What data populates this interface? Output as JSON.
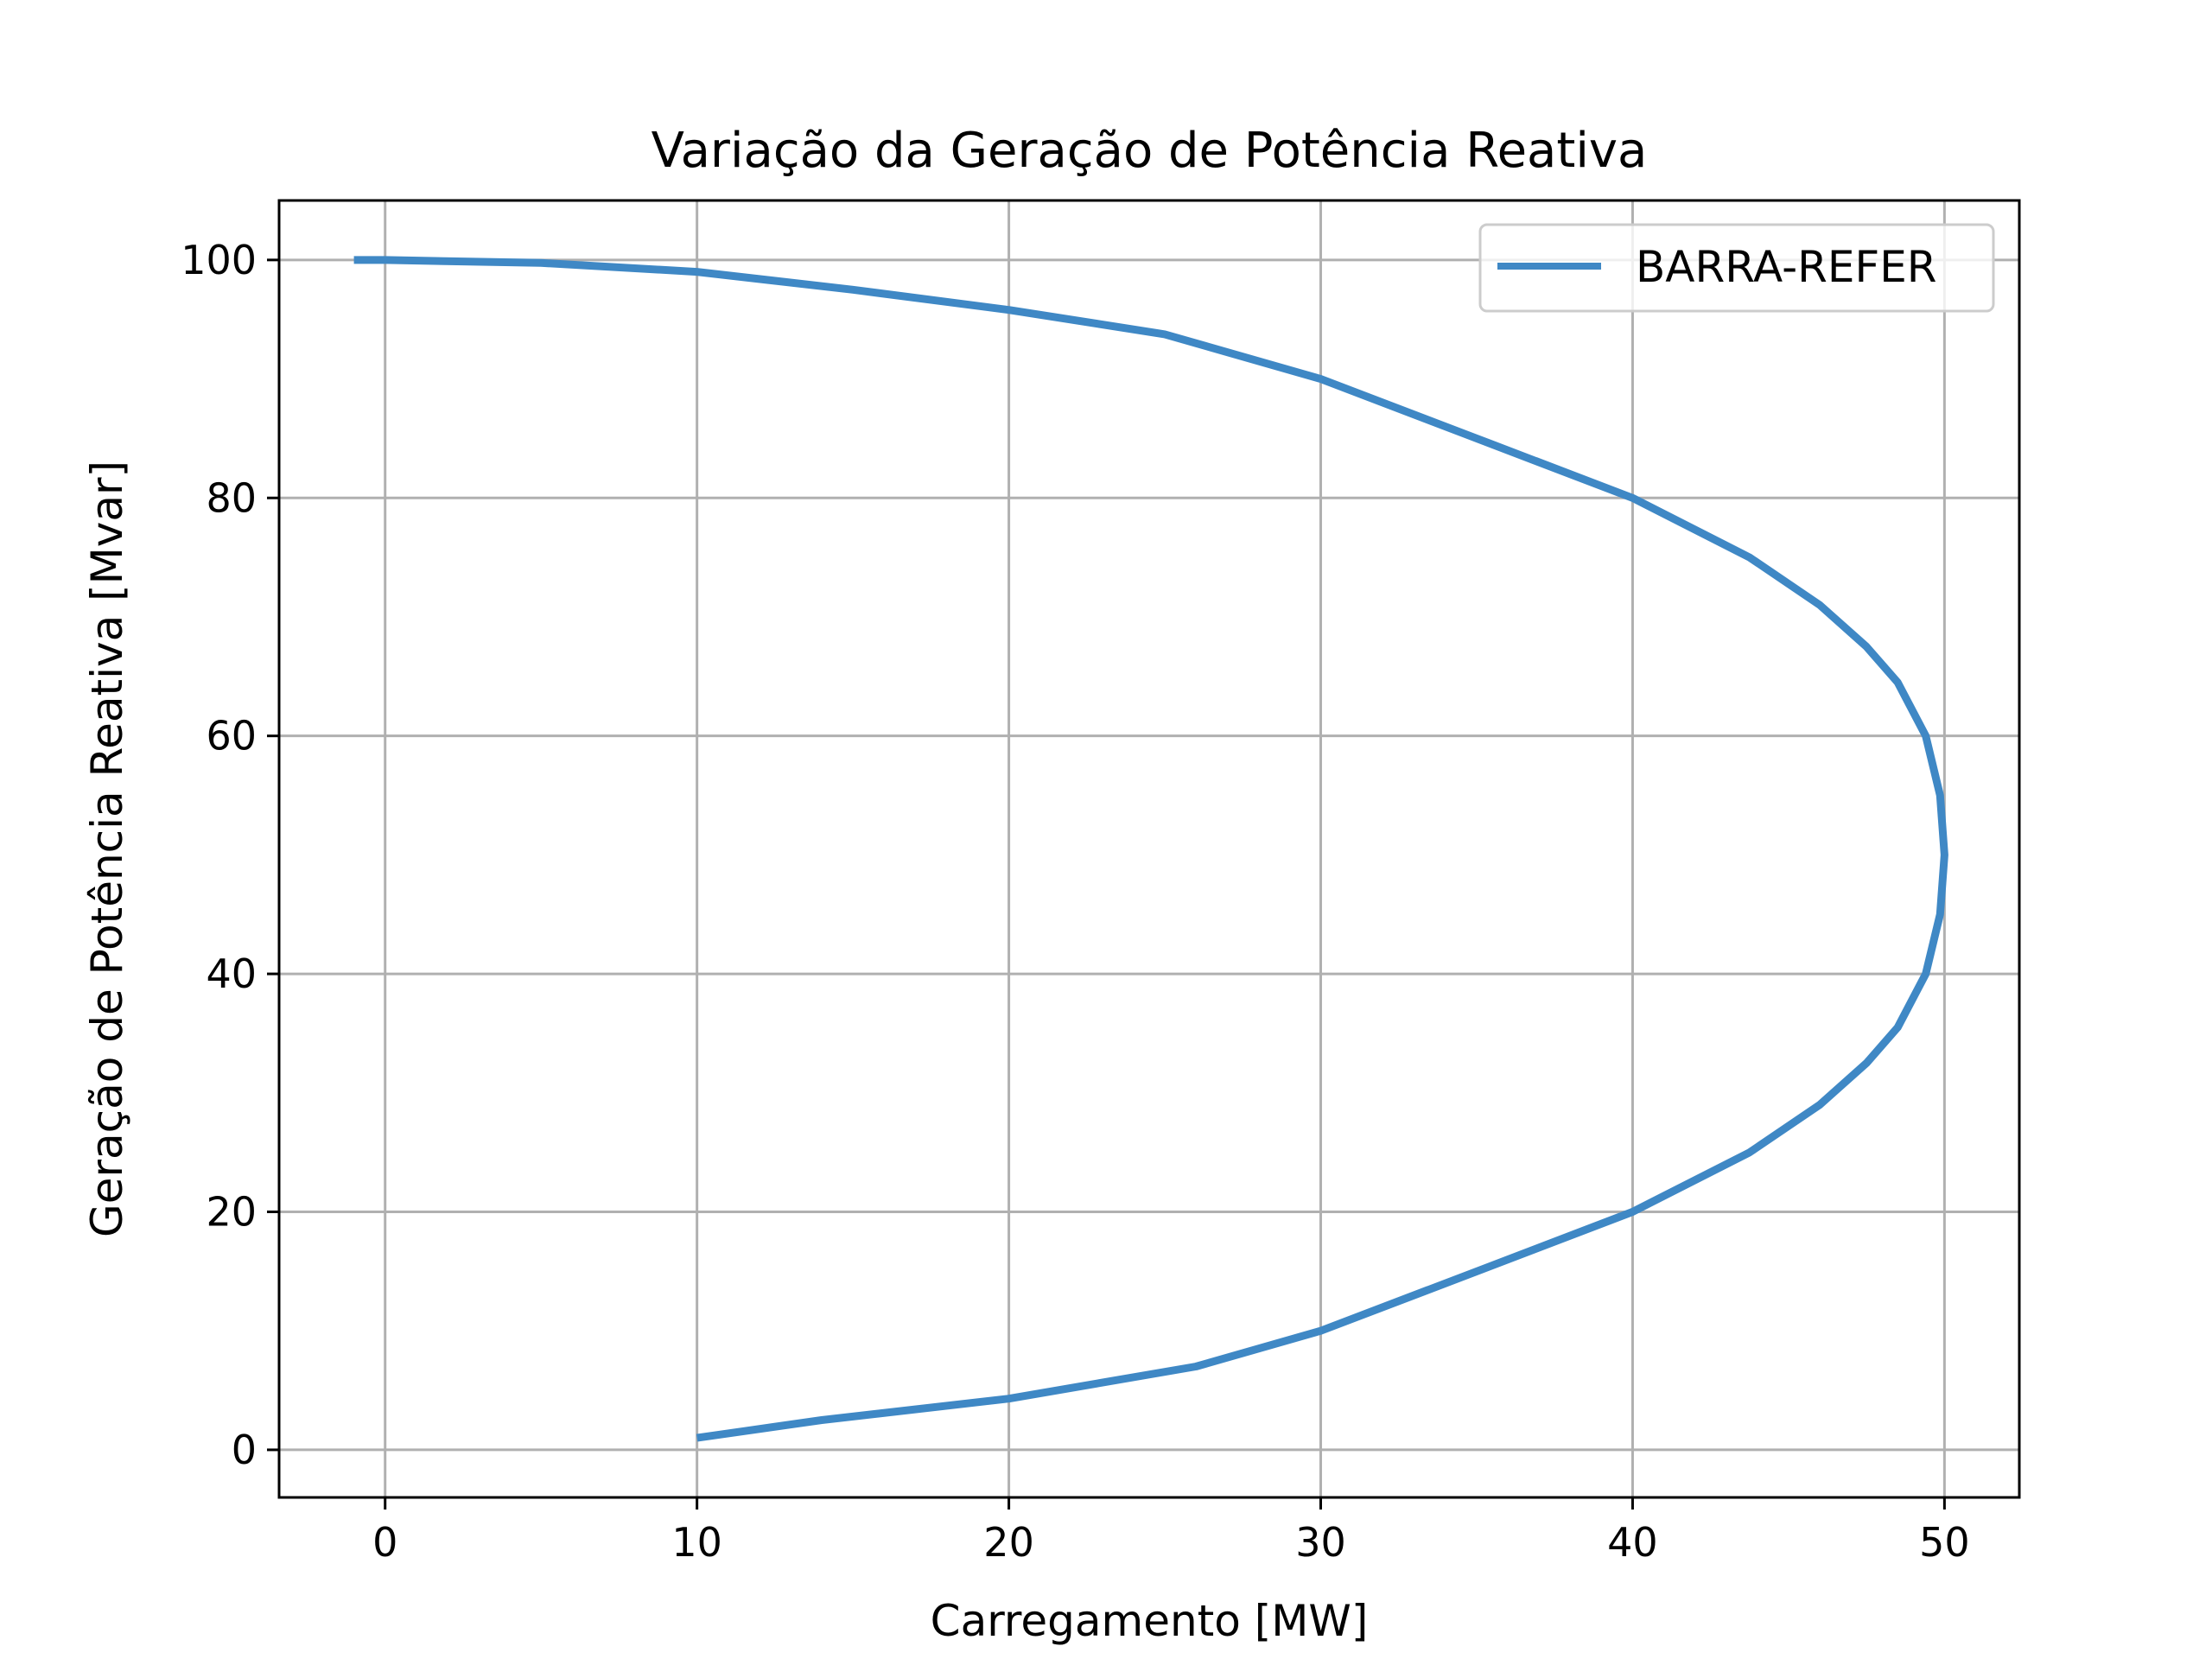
{
  "chart_data": {
    "type": "line",
    "title": "Variação da Geração de Potência Reativa",
    "xlabel": "Carregamento [MW]",
    "ylabel": "Geração de Potência Reativa [Mvar]",
    "xlim": [
      -3.4,
      52.4
    ],
    "ylim": [
      -4,
      105
    ],
    "xticks": [
      0,
      10,
      20,
      30,
      40,
      50
    ],
    "yticks": [
      0,
      20,
      40,
      60,
      80,
      100
    ],
    "grid": true,
    "legend_position": "top-right",
    "series": [
      {
        "name": "BARRA-REFER",
        "color": "#3f88c5",
        "x": [
          10,
          14.0,
          20,
          26.0,
          30,
          35.0,
          40,
          43.75,
          46.0,
          47.5,
          48.5,
          49.4,
          49.86,
          50,
          49.86,
          49.4,
          48.5,
          47.5,
          46.0,
          43.75,
          40,
          35.0,
          30,
          25.0,
          20,
          15.0,
          10,
          5.0,
          0,
          -1
        ],
        "y": [
          1,
          2.5,
          4.3,
          7.0,
          10,
          15.0,
          20,
          25.0,
          29.0,
          32.5,
          35.5,
          40,
          45,
          50,
          55,
          60,
          64.5,
          67.5,
          71.0,
          75.0,
          80,
          85.0,
          90,
          93.75,
          95.8,
          97.5,
          99,
          99.75,
          100,
          100
        ]
      }
    ]
  }
}
